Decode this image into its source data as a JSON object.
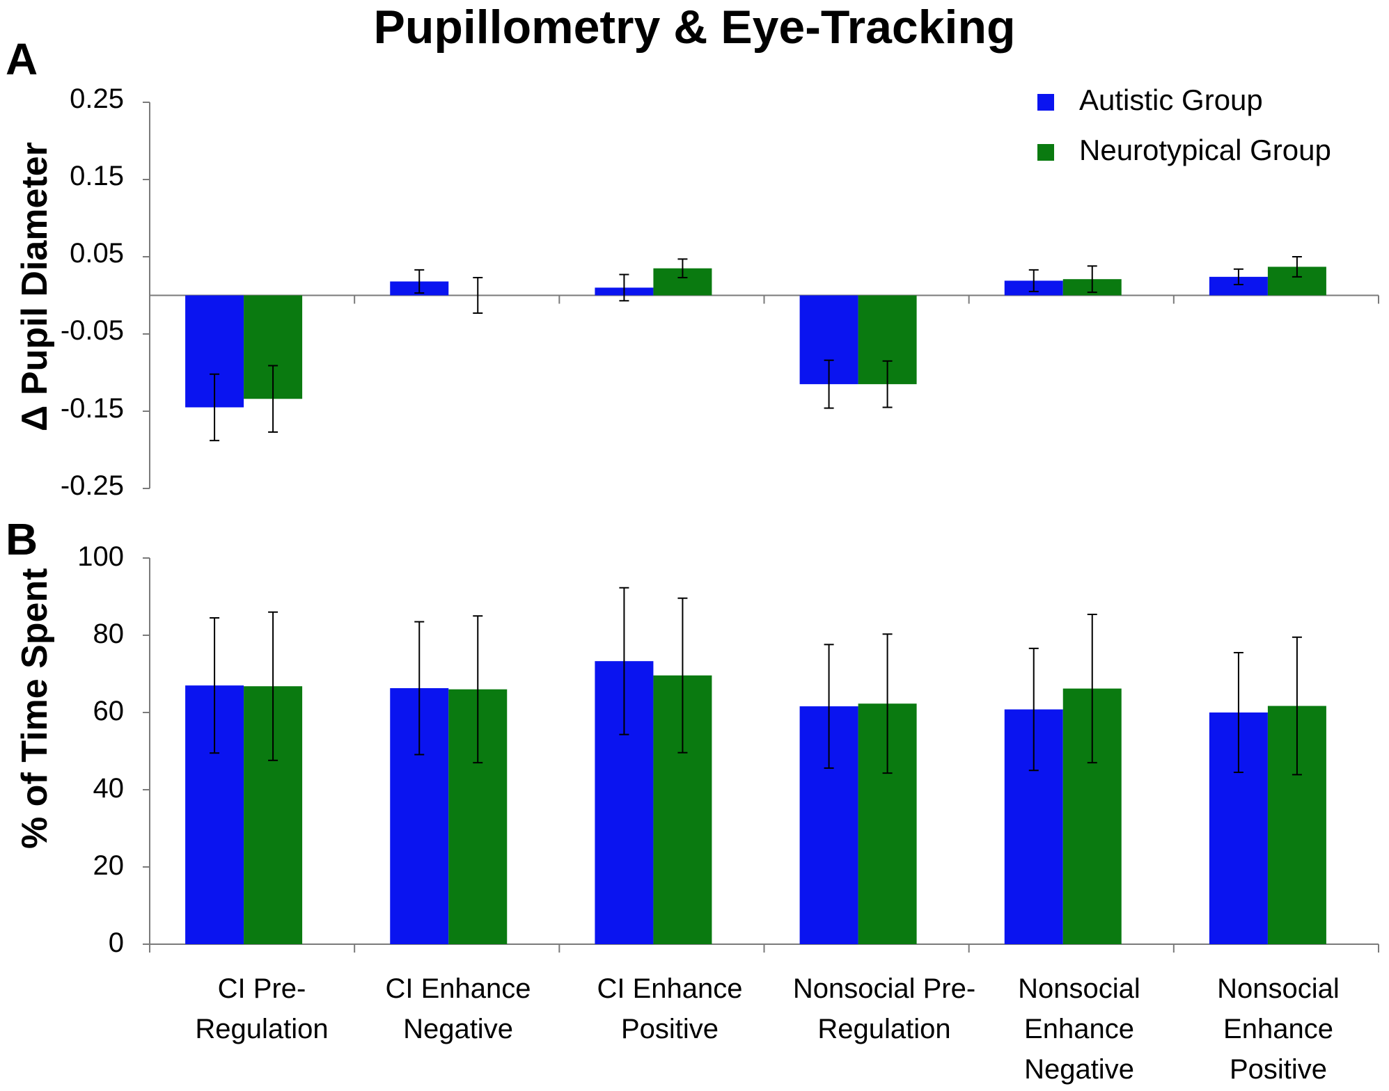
{
  "title": "Pupillometry & Eye-Tracking",
  "panel_a_letter": "A",
  "panel_b_letter": "B",
  "legend": [
    {
      "label": "Autistic Group",
      "color": "#0a14f0"
    },
    {
      "label": "Neurotypical Group",
      "color": "#0a7a10"
    }
  ],
  "chart_data": [
    {
      "type": "bar",
      "title": "",
      "ylabel": "Δ Pupil Diameter",
      "xlabel": "",
      "ylim": [
        -0.25,
        0.25
      ],
      "yticks": [
        "0.25",
        "0.15",
        "0.05",
        "-0.05",
        "-0.15",
        "-0.25"
      ],
      "categories": [
        "CI Pre-Regulation",
        "CI Enhance Negative",
        "CI Enhance Positive",
        "Nonsocial Pre-Regulation",
        "Nonsocial Enhance Negative",
        "Nonsocial Enhance Positive"
      ],
      "series": [
        {
          "name": "Autistic Group",
          "values": [
            -0.145,
            0.018,
            0.01,
            -0.115,
            0.019,
            0.024
          ],
          "errors": [
            0.043,
            0.015,
            0.017,
            0.031,
            0.014,
            0.01
          ]
        },
        {
          "name": "Neurotypical Group",
          "values": [
            -0.134,
            0.0,
            0.035,
            -0.115,
            0.021,
            0.037
          ],
          "errors": [
            0.043,
            0.023,
            0.012,
            0.03,
            0.017,
            0.013
          ]
        }
      ]
    },
    {
      "type": "bar",
      "title": "",
      "ylabel": "% of Time Spent",
      "xlabel": "",
      "ylim": [
        0,
        100
      ],
      "yticks": [
        "100",
        "80",
        "60",
        "40",
        "20",
        "0"
      ],
      "categories": [
        "CI Pre-Regulation",
        "CI Enhance Negative",
        "CI Enhance Positive",
        "Nonsocial Pre-Regulation",
        "Nonsocial Enhance Negative",
        "Nonsocial Enhance Positive"
      ],
      "series": [
        {
          "name": "Autistic Group",
          "values": [
            67,
            66.3,
            73.3,
            61.6,
            60.8,
            60
          ],
          "errors": [
            17.5,
            17.2,
            19,
            16,
            15.8,
            15.5
          ]
        },
        {
          "name": "Neurotypical Group",
          "values": [
            66.8,
            66,
            69.6,
            62.3,
            66.2,
            61.7
          ],
          "errors": [
            19.2,
            19,
            20,
            18,
            19.2,
            17.8
          ]
        }
      ]
    }
  ],
  "category_lines": [
    [
      "CI Pre-",
      "Regulation"
    ],
    [
      "CI Enhance",
      "Negative"
    ],
    [
      "CI Enhance",
      "Positive"
    ],
    [
      "Nonsocial Pre-",
      "Regulation"
    ],
    [
      "Nonsocial",
      "Enhance",
      "Negative"
    ],
    [
      "Nonsocial",
      "Enhance",
      "Positive"
    ]
  ]
}
